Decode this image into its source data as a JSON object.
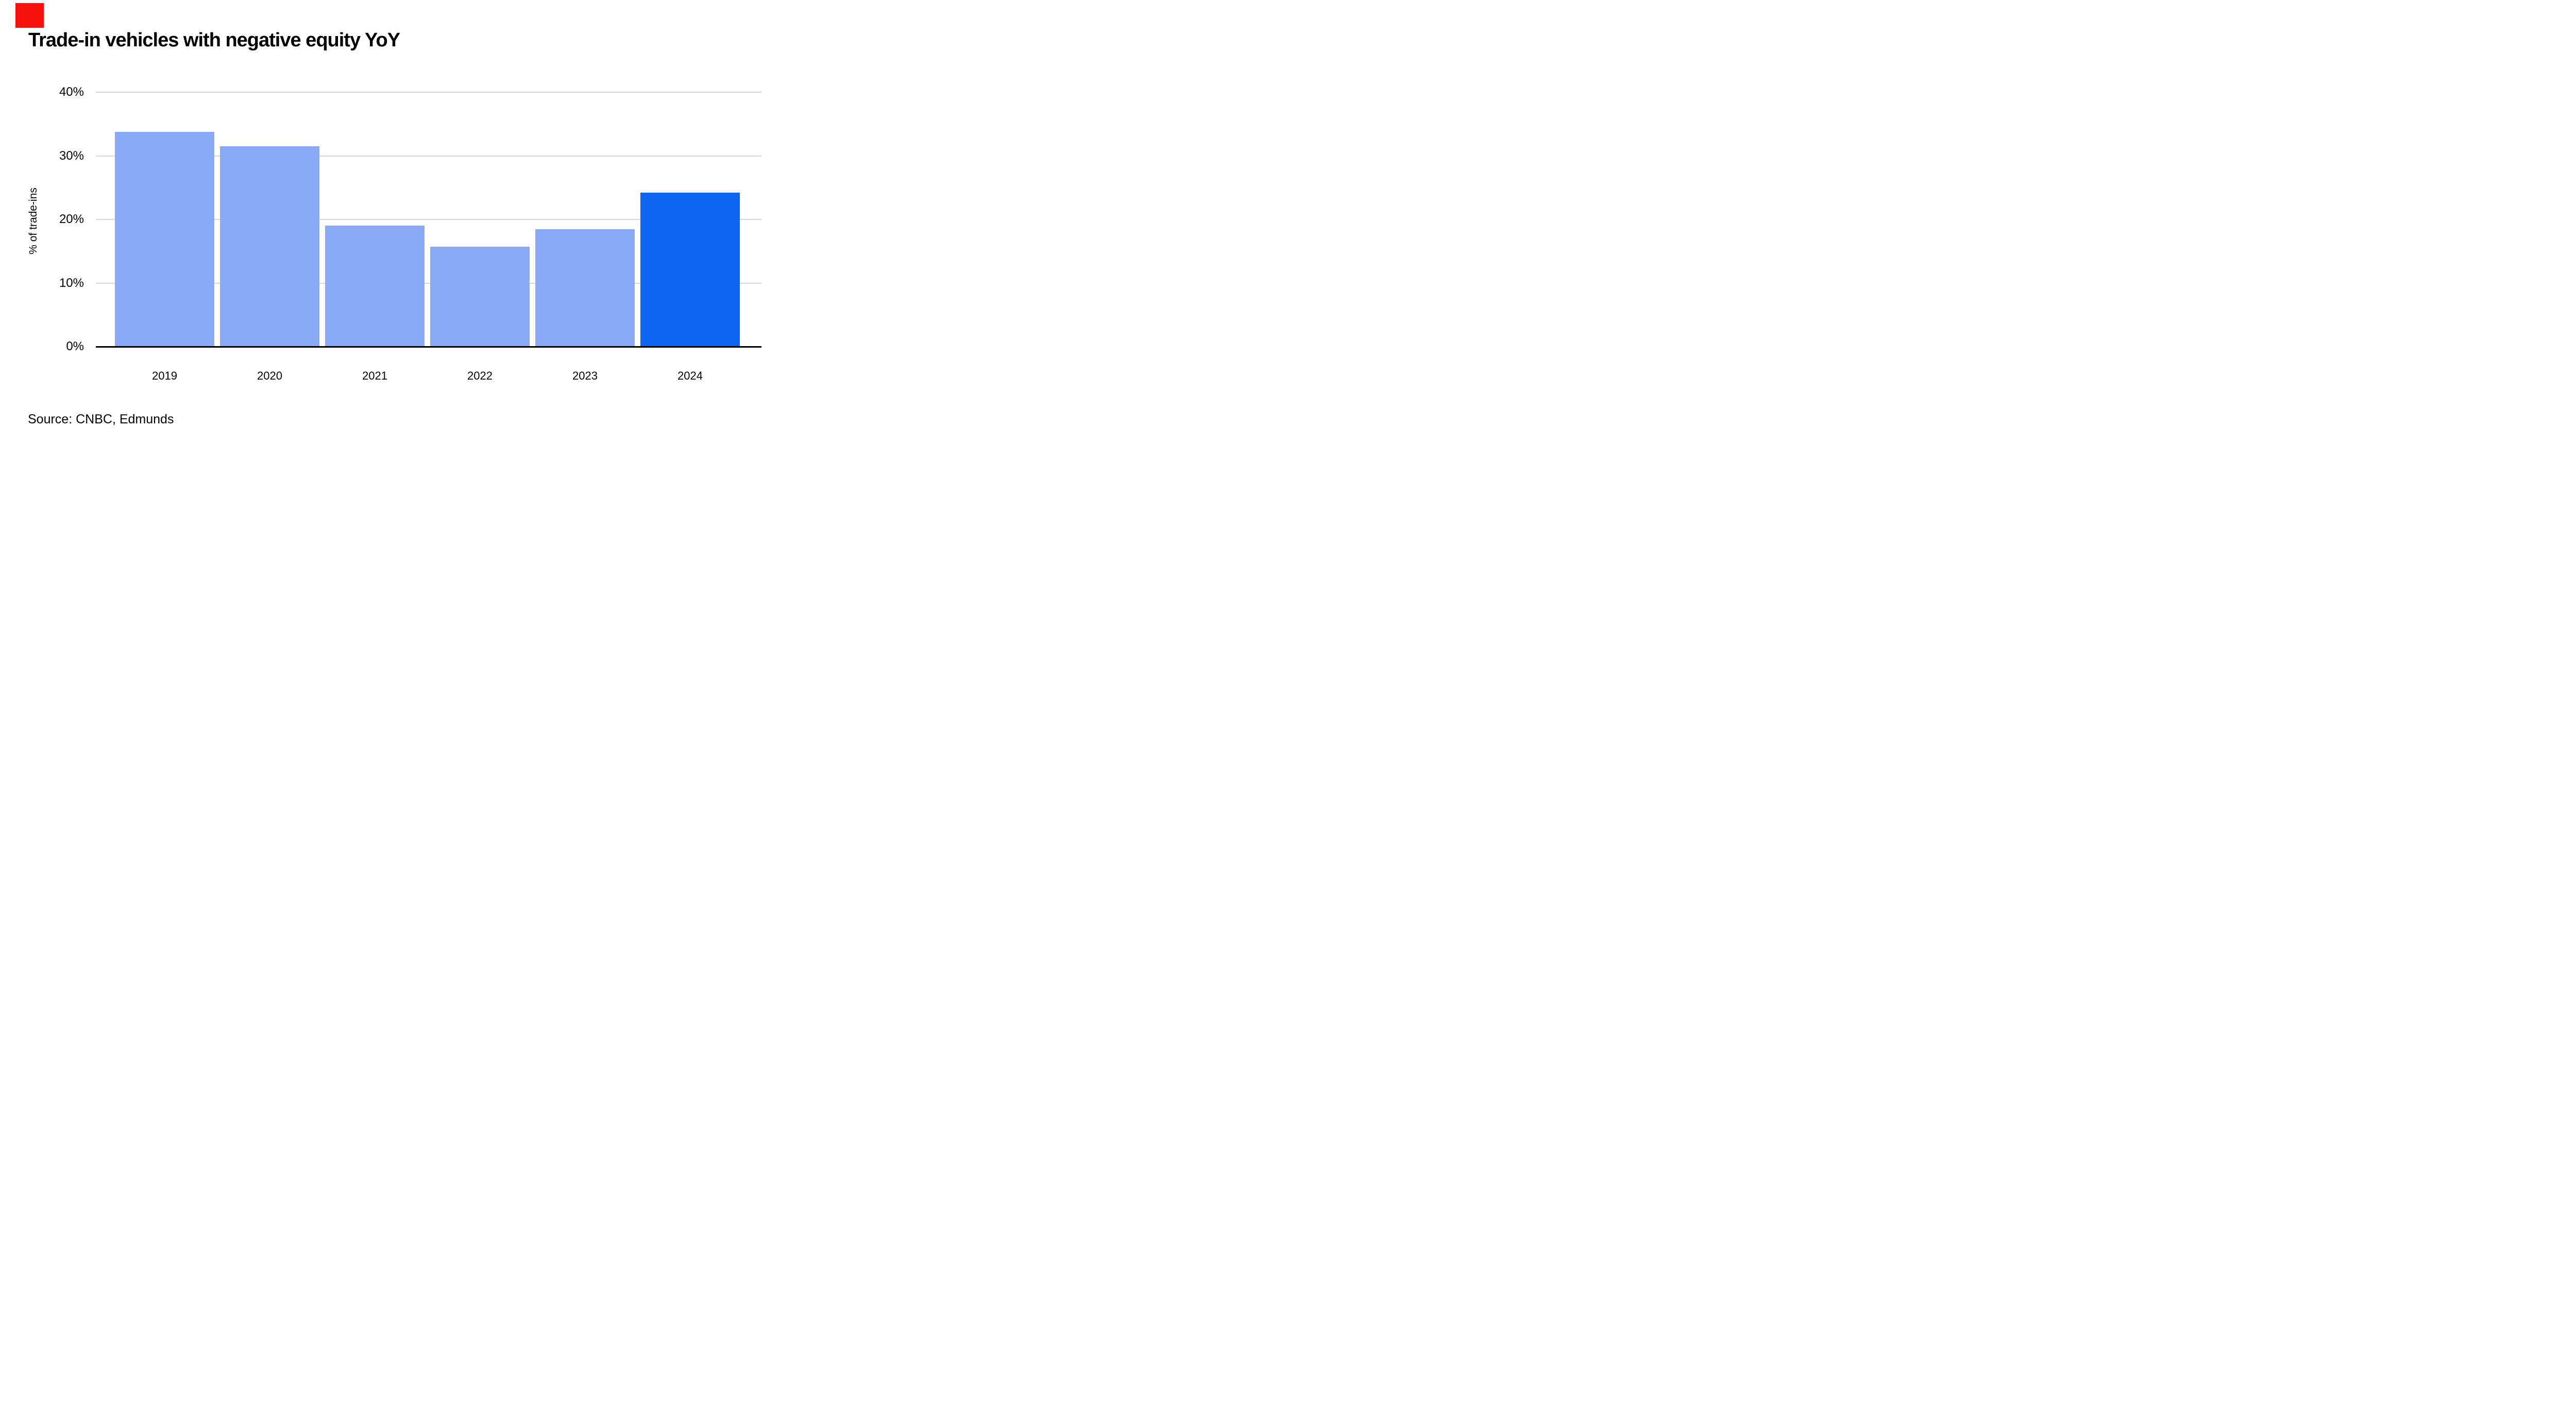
{
  "page": {
    "background": "#FFFFFF"
  },
  "brand": {
    "logo_color": "#F5100E"
  },
  "header": {
    "title": "Trade-in vehicles with negative equity YoY"
  },
  "chart_data": {
    "type": "bar",
    "title": "Trade-in vehicles with negative equity YoY",
    "categories": [
      "2019",
      "2020",
      "2021",
      "2022",
      "2023",
      "2024"
    ],
    "values": [
      33.8,
      31.5,
      19.0,
      15.7,
      18.5,
      24.2
    ],
    "xlabel": "",
    "ylabel": "% of trade-ins",
    "ylim": [
      0,
      40
    ],
    "yticks": [
      40,
      30,
      20,
      10,
      0
    ],
    "ytick_labels": [
      "40%",
      "30%",
      "20%",
      "10%",
      "0%"
    ],
    "grid": "horizontal gridlines at every 10%, behind bars",
    "legend": "none",
    "bar_color_default": "#89ABF7",
    "bar_color_highlight": "#0C66F2",
    "highlight_category": "2024",
    "gridline_color": "#D6D6D6",
    "axis_color": "#000000"
  },
  "footer": {
    "source": "Source: CNBC, Edmunds"
  }
}
